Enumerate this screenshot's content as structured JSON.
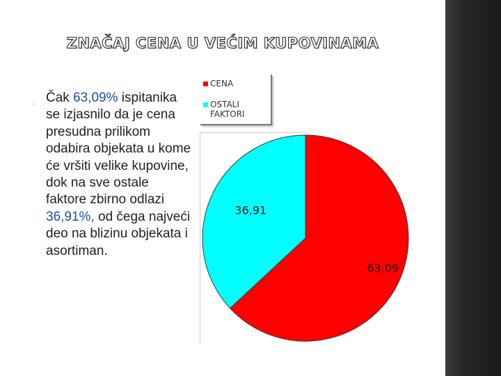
{
  "slide": {
    "title": "ZNAČAJ CENA U VEĆIM KUPOVINAMA",
    "bullet_symbol": "·",
    "paragraph": {
      "part1": "Čak ",
      "highlight1": "63,09%",
      "part2": " ispitanika se izjasnilo da je cena presudna prilikom odabira objekata u kome će vršiti velike kupovine, dok na sve ostale faktore zbirno odlazi ",
      "highlight2": "36,91%,",
      "part3": " od čega najveći deo na blizinu objekata i asortiman."
    },
    "highlight_color": "#1f4e9c"
  },
  "chart_data": {
    "type": "pie",
    "title": "",
    "legend_position": "top",
    "series": [
      {
        "name": "CENA",
        "value": 63.09,
        "label": "63,09",
        "color": "#ff0000"
      },
      {
        "name": "OSTALI FAKTORI",
        "value": 36.91,
        "label": "36,91",
        "color": "#00ffff"
      }
    ],
    "legend": [
      {
        "lines": [
          "CENA"
        ],
        "color": "#ff0000"
      },
      {
        "lines": [
          "OSTALI",
          "FAKTORI"
        ],
        "color": "#00ffff"
      }
    ]
  }
}
